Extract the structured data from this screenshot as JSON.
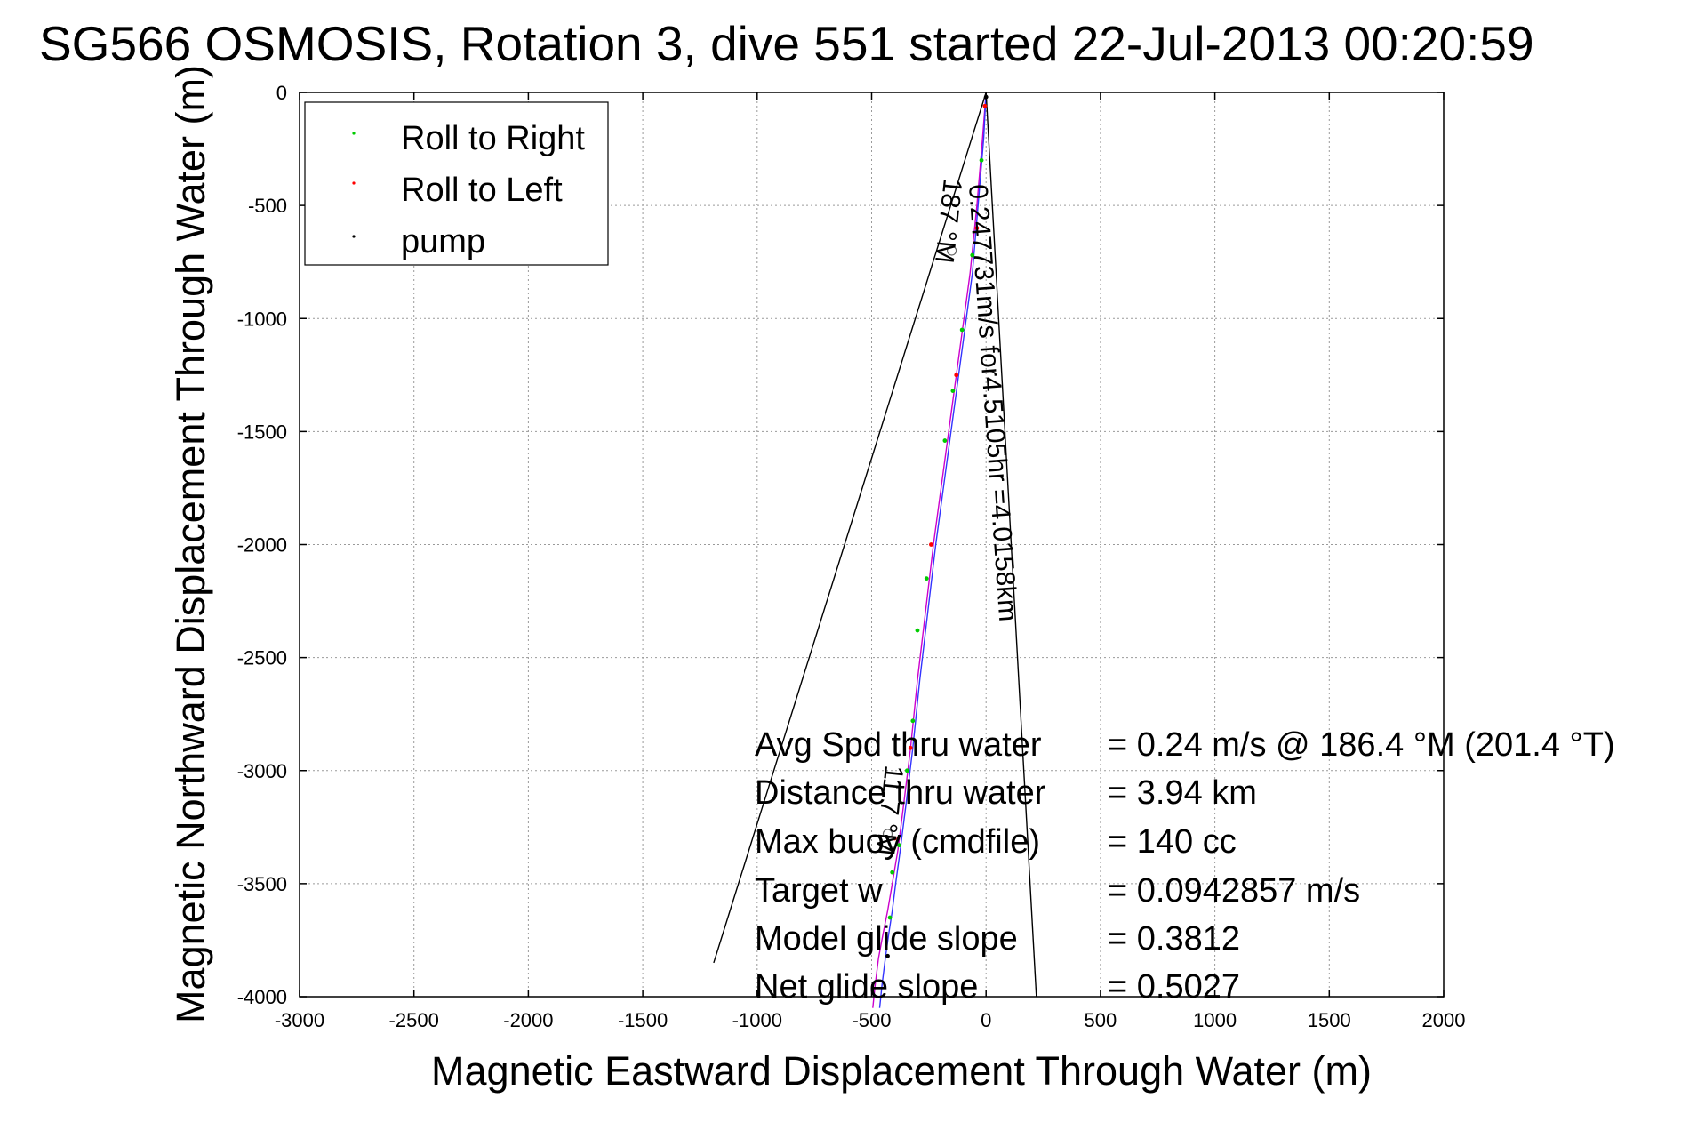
{
  "chart_data": {
    "type": "line",
    "title": "SG566 OSMOSIS, Rotation 3, dive 551 started 22-Jul-2013 00:20:59",
    "xlabel": "Magnetic Eastward Displacement Through Water (m)",
    "ylabel": "Magnetic Northward Displacement Through Water (m)",
    "xlim": [
      -3000,
      2000
    ],
    "ylim": [
      -4000,
      0
    ],
    "x_ticks": [
      -3000,
      -2500,
      -2000,
      -1500,
      -1000,
      -500,
      0,
      500,
      1000,
      1500,
      2000
    ],
    "y_ticks": [
      0,
      -500,
      -1000,
      -1500,
      -2000,
      -2500,
      -3000,
      -3500,
      -4000
    ],
    "grid": true,
    "legend": {
      "placement": "top-left",
      "entries": [
        {
          "label": "Roll to Right",
          "color": "#00cc00"
        },
        {
          "label": "Roll to Left",
          "color": "#ff0000"
        },
        {
          "label": "pump",
          "color": "#000000"
        }
      ]
    },
    "series": [
      {
        "style": "line",
        "color": "#cc00cc",
        "x": [
          0,
          -15,
          -40,
          -70,
          -110,
          -150,
          -190,
          -230,
          -265,
          -300,
          -330,
          -360,
          -385,
          -410,
          -430,
          -450,
          -470,
          -485,
          -495
        ],
        "y": [
          0,
          -200,
          -500,
          -800,
          -1100,
          -1400,
          -1700,
          -2000,
          -2300,
          -2600,
          -2900,
          -3150,
          -3350,
          -3500,
          -3620,
          -3720,
          -3830,
          -3950,
          -4050
        ]
      },
      {
        "style": "line",
        "color": "#3333ff",
        "x": [
          0,
          -10,
          -35,
          -60,
          -100,
          -140,
          -180,
          -220,
          -255,
          -290,
          -320,
          -350,
          -375,
          -395,
          -410,
          -425,
          -440,
          -455,
          -465
        ],
        "y": [
          0,
          -200,
          -500,
          -800,
          -1100,
          -1400,
          -1700,
          -2000,
          -2300,
          -2600,
          -2900,
          -3150,
          -3350,
          -3500,
          -3620,
          -3720,
          -3830,
          -3950,
          -4050
        ]
      },
      {
        "style": "line",
        "color": "#000000",
        "x": [
          0,
          -1190
        ],
        "y": [
          0,
          -3850
        ]
      },
      {
        "style": "line",
        "color": "#000000",
        "x": [
          0,
          220
        ],
        "y": [
          0,
          -4000
        ]
      },
      {
        "style": "points",
        "color": "#00cc00",
        "x": [
          -20,
          -60,
          -105,
          -145,
          -180,
          -260,
          -300,
          -320,
          -345,
          -380,
          -410,
          -420
        ],
        "y": [
          -300,
          -720,
          -1050,
          -1320,
          -1540,
          -2150,
          -2380,
          -2780,
          -3000,
          -3330,
          -3450,
          -3650
        ]
      },
      {
        "style": "points",
        "color": "#ff0000",
        "x": [
          -5,
          -40,
          -130,
          -240,
          -330,
          -400
        ],
        "y": [
          -60,
          -600,
          -1250,
          -2000,
          -2900,
          -3300
        ]
      },
      {
        "style": "points",
        "color": "#000000",
        "x": [
          0,
          -430
        ],
        "y": [
          -20,
          -3820
        ]
      }
    ],
    "annotations": {
      "track_label": "0.247731m/s for4.5105hr =4.0158km",
      "heading_top": "187 °M",
      "heading_bottom": "11.7 °M",
      "stats": [
        {
          "label": "Avg Spd thru water",
          "value": "=  0.24 m/s @ 186.4 °M (201.4 °T)"
        },
        {
          "label": "Distance thru water",
          "value": "=  3.94 km"
        },
        {
          "label": "Max buoy (cmdfile)",
          "value": "= 140 cc"
        },
        {
          "label": "Target w",
          "value": "= 0.0942857 m/s"
        },
        {
          "label": "Model glide slope",
          "value": "= 0.3812"
        },
        {
          "label": "Net glide slope",
          "value": "= 0.5027"
        }
      ]
    }
  }
}
